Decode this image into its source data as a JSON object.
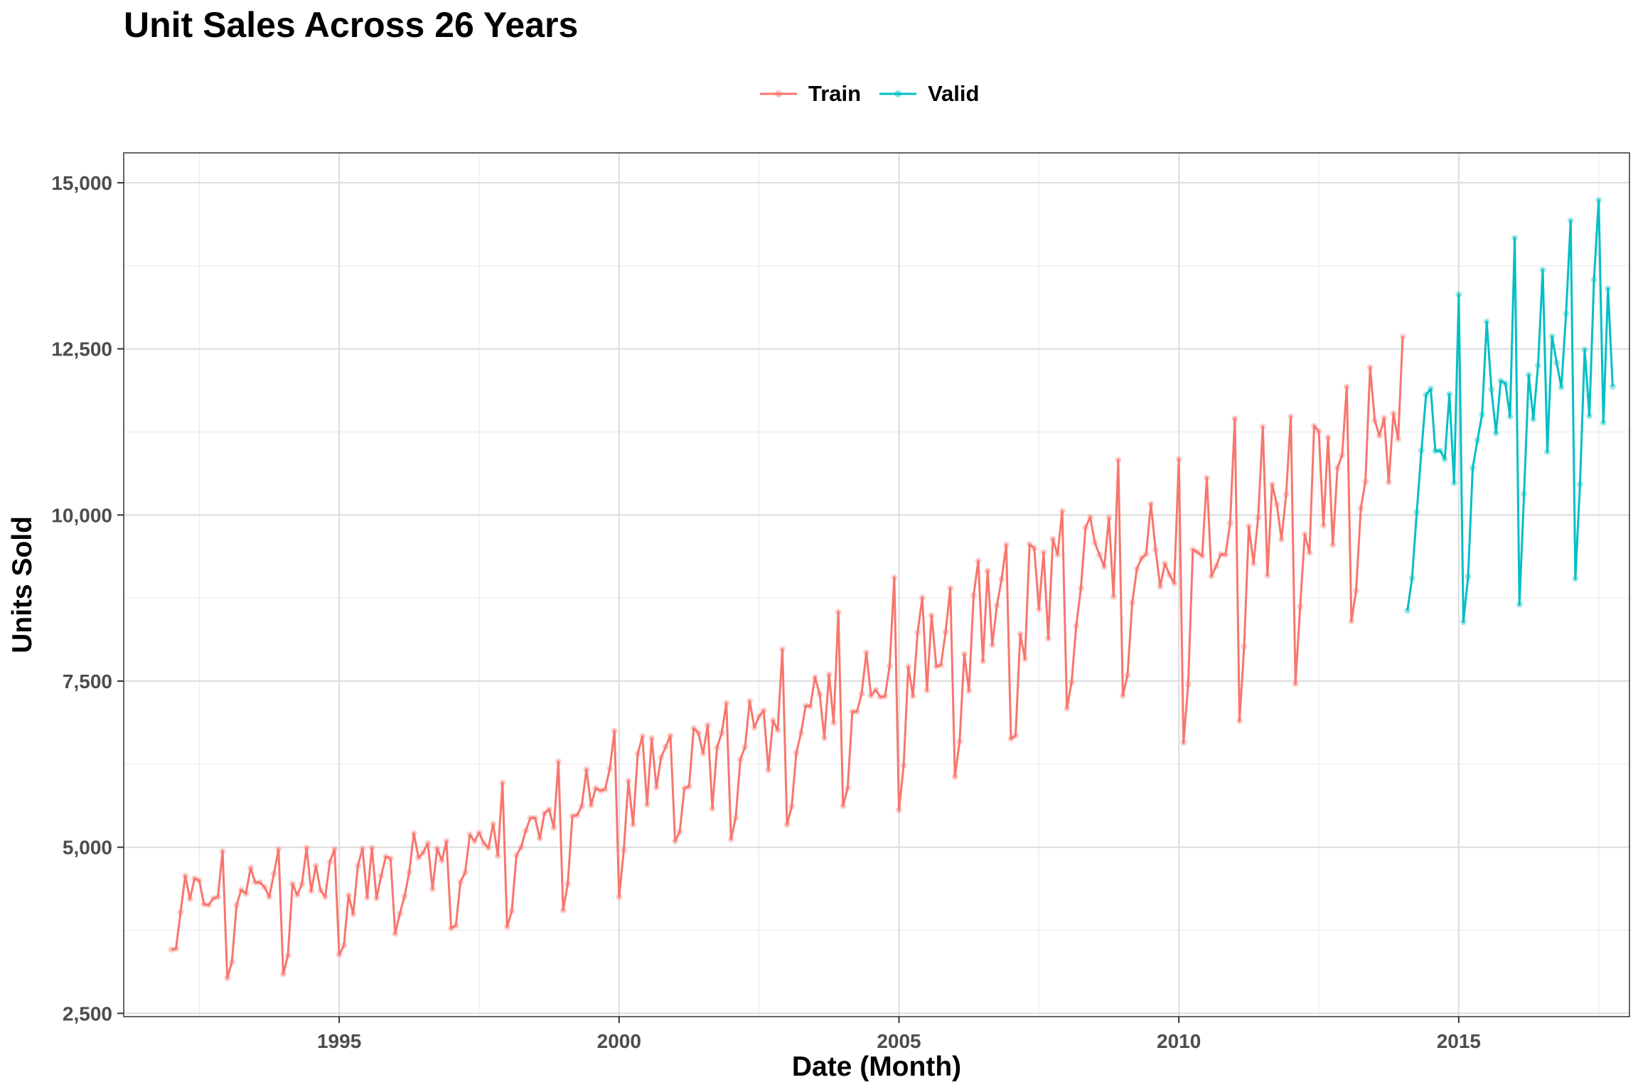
{
  "chart_data": {
    "type": "line",
    "title": "Unit Sales Across 26 Years",
    "xlabel": "Date (Month)",
    "ylabel": "Units Sold",
    "legend_position": "top",
    "grid": true,
    "ylim": [
      2450,
      15450
    ],
    "xlim": [
      1991.15,
      2018.05
    ],
    "x_ticks": [
      1995,
      2000,
      2005,
      2010,
      2015
    ],
    "x_tick_labels": [
      "1995",
      "2000",
      "2005",
      "2010",
      "2015"
    ],
    "y_ticks": [
      2500,
      5000,
      7500,
      10000,
      12500,
      15000
    ],
    "y_tick_labels": [
      "2,500",
      "5,000",
      "7,500",
      "10,000",
      "12,500",
      "15,000"
    ],
    "x_start": "1992-01",
    "x_step": "1 month",
    "series": [
      {
        "name": "Train",
        "color": "#F8766D",
        "values": [
          3460,
          3470,
          4020,
          4570,
          4220,
          4530,
          4500,
          4140,
          4130,
          4230,
          4250,
          4940,
          3030,
          3270,
          4130,
          4360,
          4300,
          4690,
          4470,
          4470,
          4400,
          4250,
          4600,
          4970,
          3090,
          3370,
          4450,
          4280,
          4440,
          4990,
          4340,
          4720,
          4350,
          4250,
          4780,
          4970,
          3380,
          3520,
          4280,
          3990,
          4720,
          4980,
          4240,
          4990,
          4230,
          4570,
          4860,
          4830,
          3700,
          4000,
          4260,
          4620,
          5210,
          4840,
          4920,
          5060,
          4370,
          4980,
          4800,
          5090,
          3780,
          3820,
          4480,
          4620,
          5190,
          5090,
          5220,
          5060,
          4990,
          5350,
          4870,
          5970,
          3800,
          4040,
          4880,
          5000,
          5250,
          5440,
          5440,
          5130,
          5510,
          5570,
          5290,
          6290,
          4050,
          4450,
          5470,
          5480,
          5620,
          6170,
          5630,
          5890,
          5850,
          5870,
          6180,
          6750,
          4250,
          4950,
          6000,
          5340,
          6410,
          6670,
          5640,
          6640,
          5900,
          6350,
          6510,
          6680,
          5090,
          5230,
          5890,
          5910,
          6790,
          6720,
          6410,
          6840,
          5580,
          6500,
          6720,
          7170,
          5120,
          5440,
          6320,
          6510,
          7200,
          6800,
          6970,
          7060,
          6160,
          6910,
          6760,
          7980,
          5340,
          5610,
          6420,
          6720,
          7130,
          7120,
          7560,
          7300,
          6640,
          7600,
          6870,
          8540,
          5620,
          5890,
          7040,
          7040,
          7310,
          7930,
          7280,
          7370,
          7260,
          7270,
          7730,
          9060,
          5560,
          6230,
          7720,
          7270,
          8230,
          8760,
          7360,
          8490,
          7720,
          7740,
          8240,
          8900,
          6060,
          6590,
          7910,
          7350,
          8790,
          9310,
          7800,
          9160,
          8040,
          8640,
          9030,
          9550,
          6630,
          6680,
          8210,
          7830,
          9560,
          9500,
          8580,
          9440,
          8140,
          9640,
          9400,
          10060,
          7090,
          7480,
          8330,
          8900,
          9810,
          9970,
          9580,
          9400,
          9220,
          9960,
          8770,
          10830,
          7280,
          7590,
          8680,
          9190,
          9350,
          9410,
          10170,
          9480,
          8920,
          9270,
          9100,
          8970,
          10840,
          6570,
          7450,
          9480,
          9440,
          9380,
          10560,
          9080,
          9230,
          9410,
          9400,
          9880,
          11450,
          6900,
          8020,
          9830,
          9270,
          9960,
          11330,
          9090,
          10460,
          10160,
          9630,
          10310,
          11480,
          7460,
          8620,
          9710,
          9430,
          11340,
          11260,
          9840,
          11170,
          9550,
          10710,
          10900,
          11930,
          8400,
          8860,
          10100,
          10500,
          12220,
          11420,
          11190,
          11460,
          10490,
          11530,
          11140,
          12690
        ]
      },
      {
        "name": "Valid",
        "color": "#00BFC4",
        "values": [
          8560,
          9050,
          10040,
          10970,
          11810,
          11900,
          10960,
          10970,
          10840,
          11820,
          10480,
          13320,
          8390,
          9070,
          10710,
          11120,
          11510,
          12910,
          11890,
          11230,
          12020,
          11980,
          11480,
          14170,
          8650,
          10320,
          12110,
          11440,
          12250,
          13690,
          10950,
          12690,
          12290,
          11920,
          13030,
          14430,
          9040,
          10460,
          12490,
          11490,
          13540,
          14740,
          11390,
          13410,
          11930
        ]
      }
    ]
  }
}
